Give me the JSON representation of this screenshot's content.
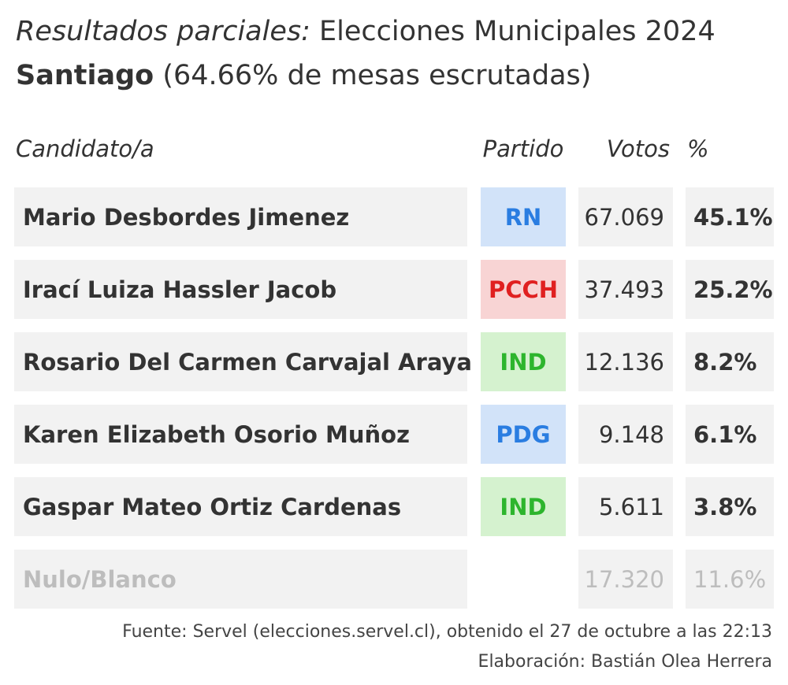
{
  "header": {
    "title_italic": "Resultados parciales:",
    "title_rest": " Elecciones Municipales 2024",
    "commune": "Santiago",
    "progress_text": " (64.66% de mesas escrutadas)"
  },
  "columns": {
    "candidate": "Candidato/a",
    "party": "Partido",
    "votes": "Votos",
    "percent": "%"
  },
  "chart_data": {
    "type": "table",
    "progress_percent": 64.66,
    "rows": [
      {
        "name": "Mario Desbordes Jimenez",
        "party": "RN",
        "party_color": "#2a7de1",
        "party_bg": "#d2e3f9",
        "votes": "67.069",
        "percent": "45.1%"
      },
      {
        "name": "Irací Luiza Hassler Jacob",
        "party": "PCCH",
        "party_color": "#e02020",
        "party_bg": "#f8d4d4",
        "votes": "37.493",
        "percent": "25.2%"
      },
      {
        "name": "Rosario Del Carmen Carvajal Araya",
        "party": "IND",
        "party_color": "#2db52d",
        "party_bg": "#d5f2cf",
        "votes": "12.136",
        "percent": "8.2%"
      },
      {
        "name": "Karen Elizabeth Osorio Muñoz",
        "party": "PDG",
        "party_color": "#2a7de1",
        "party_bg": "#d2e3f9",
        "votes": "9.148",
        "percent": "6.1%"
      },
      {
        "name": "Gaspar Mateo Ortiz Cardenas",
        "party": "IND",
        "party_color": "#2db52d",
        "party_bg": "#d5f2cf",
        "votes": "5.611",
        "percent": "3.8%"
      },
      {
        "name": "Nulo/Blanco",
        "party": "",
        "party_color": "",
        "party_bg": "",
        "votes": "17.320",
        "percent": "11.6%"
      }
    ]
  },
  "footer": {
    "source": "Fuente: Servel (elecciones.servel.cl), obtenido el 27 de octubre a las 22:13",
    "credit": "Elaboración: Bastián Olea Herrera"
  }
}
